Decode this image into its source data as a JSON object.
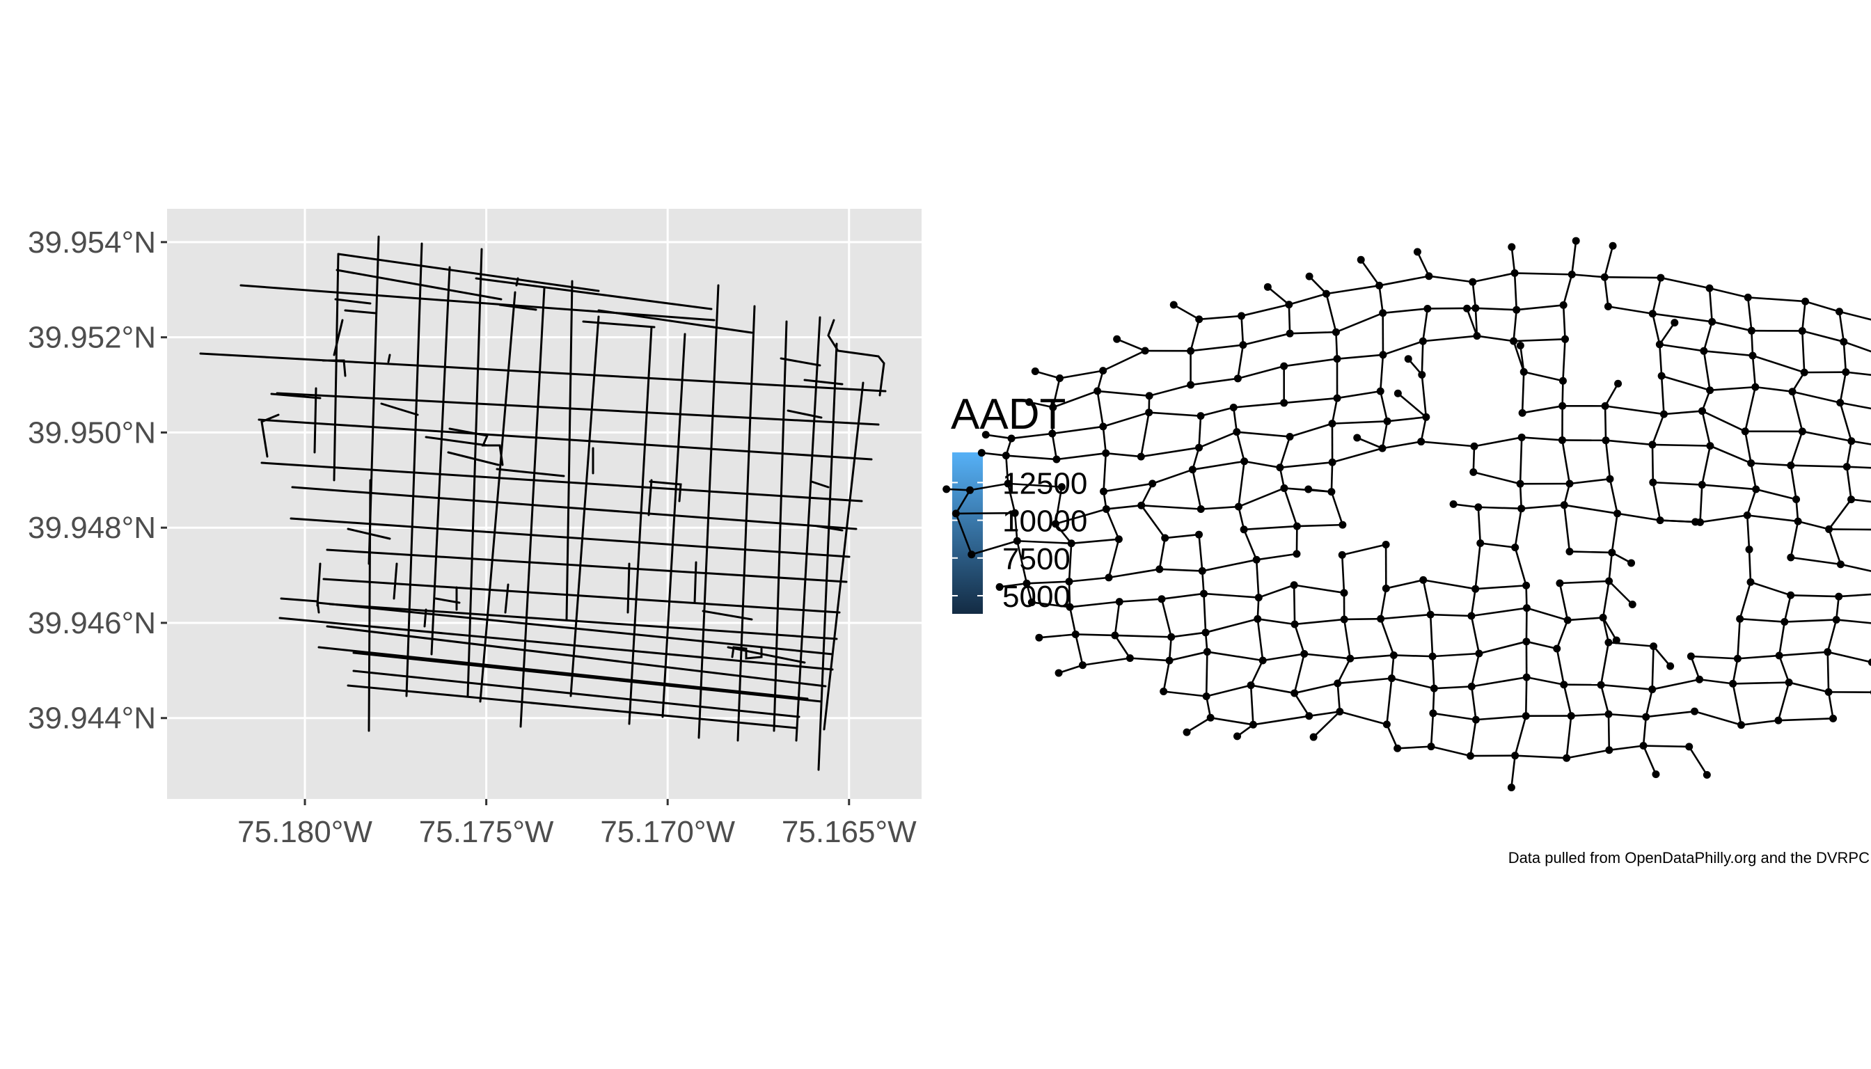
{
  "chart_data": [
    {
      "type": "map",
      "panel": "street-map",
      "xlabel": "",
      "ylabel": "",
      "x_ticks": [
        "75.180°W",
        "75.175°W",
        "75.170°W",
        "75.165°W"
      ],
      "y_ticks": [
        "39.954°N",
        "39.952°N",
        "39.950°N",
        "39.948°N",
        "39.946°N",
        "39.944°N"
      ],
      "x_tick_values": [
        -75.18,
        -75.175,
        -75.17,
        -75.165
      ],
      "y_tick_values": [
        39.954,
        39.952,
        39.95,
        39.948,
        39.946,
        39.944
      ],
      "xlim": [
        -75.1838,
        -75.163
      ],
      "ylim": [
        39.9423,
        39.9547
      ],
      "background": "#e5e5e5",
      "grid": true,
      "line_color": "#000000",
      "legend": {
        "title": "AADT",
        "placement": "right",
        "breaks": [
          "12500",
          "10000",
          "7500",
          "5000"
        ],
        "break_values": [
          12500,
          10000,
          7500,
          5000
        ],
        "range": [
          3800,
          14500
        ],
        "colors": [
          "#132b43",
          "#56b1f7"
        ]
      }
    },
    {
      "type": "network",
      "panel": "street-graph",
      "node_color": "#000000",
      "edge_color": "#000000"
    }
  ],
  "caption": "Data pulled from OpenDataPhilly.org and the DVRPC"
}
